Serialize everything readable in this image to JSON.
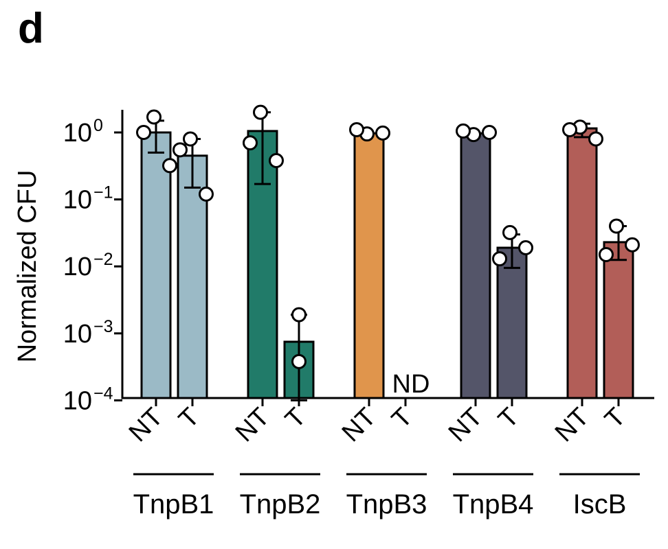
{
  "panel_letter": "d",
  "chart_data": {
    "type": "bar",
    "ylabel": "Normalized CFU",
    "yscale": "log",
    "ylim": [
      0.0001,
      2
    ],
    "yticks": [
      {
        "value": 1,
        "base": "10",
        "exp": "0"
      },
      {
        "value": 0.1,
        "base": "10",
        "exp": "−1"
      },
      {
        "value": 0.01,
        "base": "10",
        "exp": "−2"
      },
      {
        "value": 0.001,
        "base": "10",
        "exp": "−3"
      },
      {
        "value": 0.0001,
        "base": "10",
        "exp": "−4"
      }
    ],
    "groups": [
      {
        "name": "TnpB1",
        "color": "#9bbac6",
        "bars": [
          {
            "label": "NT",
            "value": 1.0,
            "err_low": 0.5,
            "err_high": 1.5,
            "points": [
              1.7,
              1.0,
              0.32
            ]
          },
          {
            "label": "T",
            "value": 0.45,
            "err_low": 0.15,
            "err_high": 0.8,
            "points": [
              0.8,
              0.55,
              0.12
            ]
          }
        ]
      },
      {
        "name": "TnpB2",
        "color": "#217b69",
        "bars": [
          {
            "label": "NT",
            "value": 1.05,
            "err_low": 0.17,
            "err_high": 2.0,
            "points": [
              2.0,
              0.7,
              0.38
            ]
          },
          {
            "label": "T",
            "value": 0.00075,
            "err_low": 0.0001,
            "err_high": 0.0019,
            "points": [
              0.0019,
              0.00038
            ]
          }
        ]
      },
      {
        "name": "TnpB3",
        "color": "#e0954c",
        "bars": [
          {
            "label": "NT",
            "value": 0.97,
            "points": [
              0.95,
              1.1,
              0.98
            ]
          },
          {
            "label": "T",
            "value": null,
            "annotation": "ND"
          }
        ]
      },
      {
        "name": "TnpB4",
        "color": "#545569",
        "bars": [
          {
            "label": "NT",
            "value": 0.97,
            "points": [
              0.93,
              1.05,
              1.0
            ]
          },
          {
            "label": "T",
            "value": 0.019,
            "err_low": 0.0095,
            "err_high": 0.03,
            "points": [
              0.032,
              0.013,
              0.019
            ]
          }
        ]
      },
      {
        "name": "IscB",
        "color": "#b25e58",
        "bars": [
          {
            "label": "NT",
            "value": 1.15,
            "err_low": 0.85,
            "err_high": 1.35,
            "points": [
              1.2,
              1.1,
              0.8
            ]
          },
          {
            "label": "T",
            "value": 0.023,
            "err_low": 0.0125,
            "err_high": 0.04,
            "points": [
              0.04,
              0.015,
              0.021
            ]
          }
        ]
      }
    ]
  }
}
